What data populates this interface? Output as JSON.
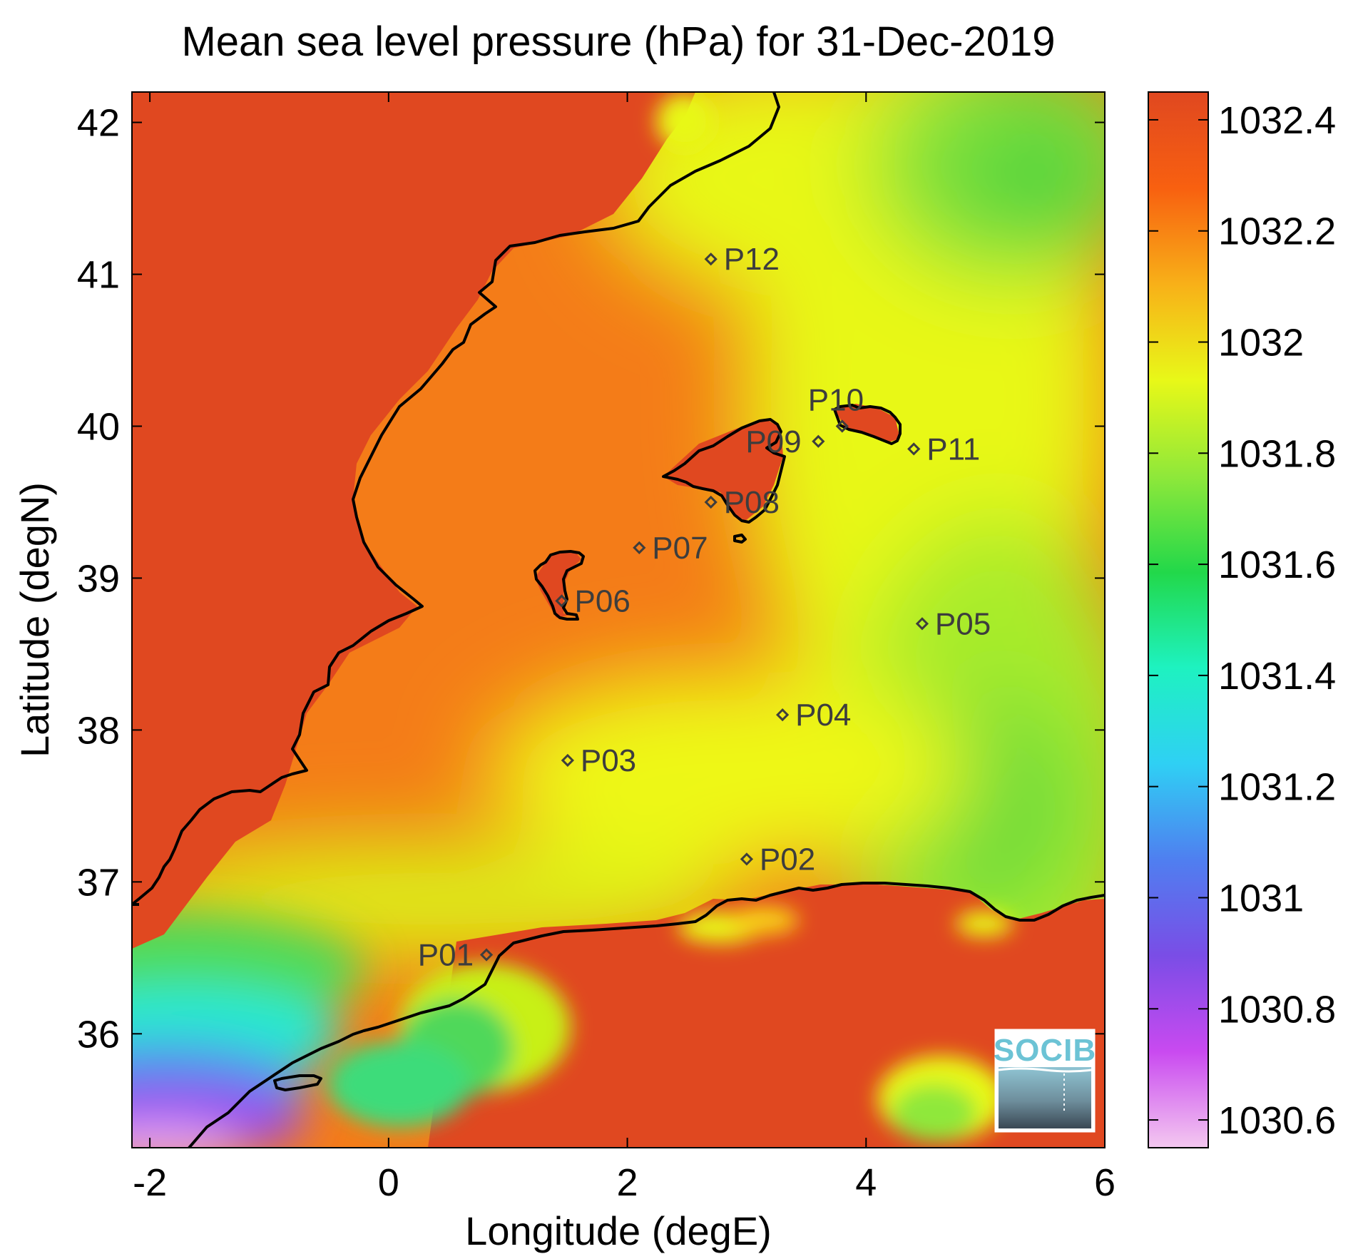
{
  "chart_data": {
    "type": "heatmap",
    "title": "Mean sea level pressure (hPa) for 31-Dec-2019",
    "xlabel": "Longitude (degE)",
    "ylabel": "Latitude (degN)",
    "xlim": [
      -2.15,
      6.0
    ],
    "ylim": [
      35.25,
      42.2
    ],
    "x_ticks": [
      -2,
      0,
      2,
      4,
      6
    ],
    "y_ticks": [
      36,
      37,
      38,
      39,
      40,
      41,
      42
    ],
    "colorbar": {
      "range": [
        1030.55,
        1032.45
      ],
      "ticks": [
        1030.6,
        1030.8,
        1031,
        1031.2,
        1031.4,
        1031.6,
        1031.8,
        1032,
        1032.2,
        1032.4
      ],
      "colors": [
        "#f4c8f0",
        "#c94af0",
        "#7a4de6",
        "#4f7ff0",
        "#2fd0f4",
        "#1ef2c0",
        "#22d84a",
        "#8fe83a",
        "#e8f818",
        "#f8b018",
        "#f86010",
        "#e04820"
      ]
    },
    "points": [
      {
        "name": "P01",
        "lon": 0.82,
        "lat": 36.52
      },
      {
        "name": "P02",
        "lon": 3.0,
        "lat": 37.15
      },
      {
        "name": "P03",
        "lon": 1.5,
        "lat": 37.8
      },
      {
        "name": "P04",
        "lon": 3.3,
        "lat": 38.1
      },
      {
        "name": "P05",
        "lon": 4.47,
        "lat": 38.7
      },
      {
        "name": "P06",
        "lon": 1.45,
        "lat": 38.85
      },
      {
        "name": "P07",
        "lon": 2.1,
        "lat": 39.2
      },
      {
        "name": "P08",
        "lon": 2.7,
        "lat": 39.5
      },
      {
        "name": "P09",
        "lon": 3.6,
        "lat": 39.9
      },
      {
        "name": "P10",
        "lon": 3.8,
        "lat": 40.0
      },
      {
        "name": "P11",
        "lon": 4.4,
        "lat": 39.85
      },
      {
        "name": "P12",
        "lon": 2.7,
        "lat": 41.1
      }
    ],
    "colors": {
      "land_high": "#e04820",
      "sea_orange": "#f47818",
      "coastline": "#000000",
      "marker": "#3d3d3d"
    }
  },
  "logo": {
    "text": "SOCIB"
  }
}
